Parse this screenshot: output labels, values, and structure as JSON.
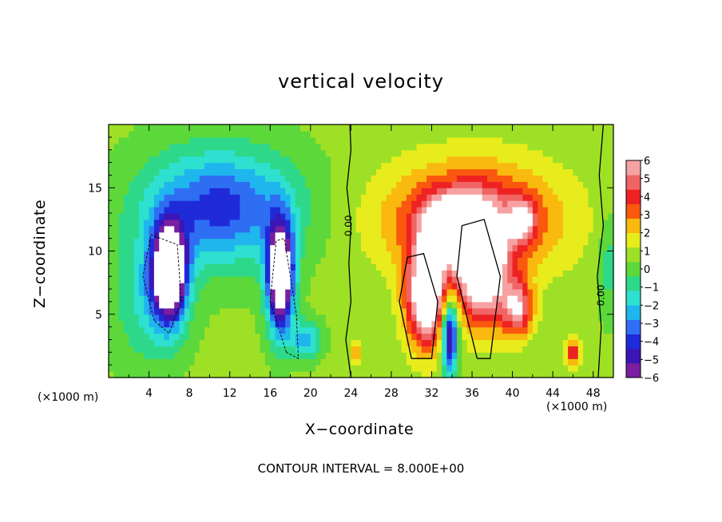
{
  "chart_data": {
    "type": "heatmap",
    "title": "vertical velocity",
    "xlabel": "X−coordinate",
    "ylabel": "Z−coordinate",
    "x_unit_left": "(×1000 m)",
    "x_unit_right": "(×1000 m)",
    "xlim": [
      0,
      50
    ],
    "ylim": [
      0,
      20
    ],
    "x_ticks": [
      4,
      8,
      12,
      16,
      20,
      24,
      28,
      32,
      36,
      40,
      44,
      48
    ],
    "y_ticks": [
      5,
      10,
      15
    ],
    "colorbar": {
      "range": [
        -6,
        6
      ],
      "ticks": [
        "6",
        "5",
        "4",
        "3",
        "2",
        "1",
        "0",
        "−1",
        "−2",
        "−3",
        "−4",
        "−5",
        "−6"
      ],
      "colors": [
        "#7a1fa0",
        "#3b16b4",
        "#1f2ad8",
        "#2f6ef2",
        "#1fb6ee",
        "#2ee0cf",
        "#2ed88a",
        "#5cd83a",
        "#9ee026",
        "#e8ec1c",
        "#f9b90f",
        "#f9580e",
        "#ee2222",
        "#f06464",
        "#f7a2a2"
      ],
      "over_color": "#ffffff",
      "under_color": "#ffffff"
    },
    "contour_labels": [
      "0.00",
      "0.00"
    ],
    "contour_note": "CONTOUR INTERVAL = 8.000E+00",
    "features": [
      {
        "kind": "downdraft",
        "x": 6.0,
        "z": 8.0,
        "peak": -9
      },
      {
        "kind": "downdraft",
        "x": 17.0,
        "z": 8.0,
        "peak": -9
      },
      {
        "kind": "updraft",
        "x": 32.0,
        "z": 8.0,
        "peak": 10
      },
      {
        "kind": "updraft",
        "x": 38.0,
        "z": 8.0,
        "peak": 10
      }
    ]
  }
}
